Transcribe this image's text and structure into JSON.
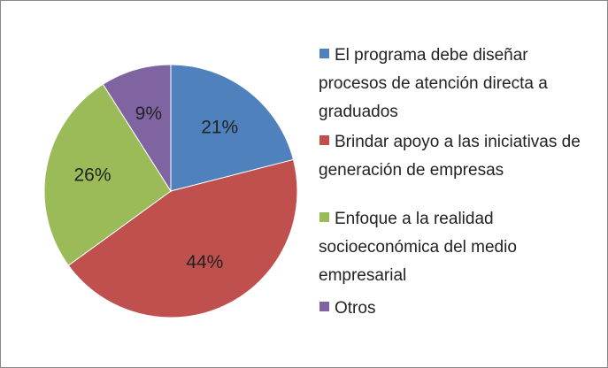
{
  "chart_data": {
    "type": "pie",
    "categories": [
      "El programa debe diseñar procesos de atención directa a graduados",
      "Brindar apoyo a las iniciativas de generación de empresas",
      "Enfoque a la realidad socioeconómica del medio empresarial",
      "Otros"
    ],
    "values": [
      21,
      44,
      26,
      9
    ],
    "value_labels": [
      "21%",
      "44%",
      "26%",
      "9%"
    ],
    "colors": [
      "#4f81bd",
      "#c0504d",
      "#9bbb59",
      "#8064a2"
    ],
    "legend": "right"
  }
}
